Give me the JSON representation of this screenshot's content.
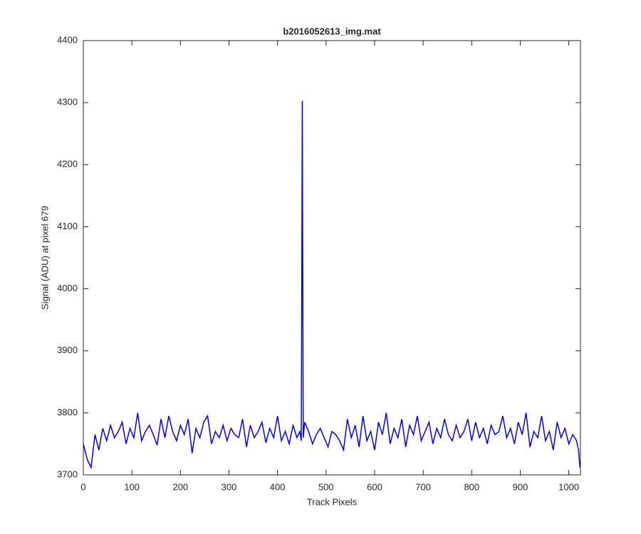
{
  "chart_data": {
    "type": "line",
    "title": "b2016052613_img.mat",
    "x_label": "Track Pixels",
    "y_label": "Signal (ADU) at pixel 679",
    "xlim": [
      0,
      1024
    ],
    "ylim": [
      3700,
      4400
    ],
    "xticks": [
      0,
      100,
      200,
      300,
      400,
      500,
      600,
      700,
      800,
      900,
      1000
    ],
    "yticks": [
      3700,
      3800,
      3900,
      4000,
      4100,
      4200,
      4300,
      4400
    ],
    "x": [
      0,
      8,
      16,
      24,
      32,
      40,
      48,
      56,
      64,
      72,
      80,
      88,
      96,
      104,
      112,
      120,
      128,
      136,
      144,
      152,
      160,
      168,
      176,
      184,
      192,
      200,
      208,
      216,
      224,
      232,
      240,
      248,
      256,
      264,
      272,
      280,
      288,
      296,
      304,
      312,
      320,
      328,
      336,
      344,
      352,
      360,
      368,
      376,
      384,
      392,
      400,
      408,
      416,
      424,
      432,
      440,
      446,
      449,
      451,
      453,
      456,
      464,
      472,
      480,
      488,
      496,
      504,
      512,
      520,
      528,
      536,
      544,
      552,
      560,
      568,
      576,
      584,
      592,
      600,
      608,
      616,
      624,
      632,
      640,
      648,
      656,
      664,
      672,
      680,
      688,
      696,
      704,
      712,
      720,
      728,
      736,
      744,
      752,
      760,
      768,
      776,
      784,
      792,
      800,
      808,
      816,
      824,
      832,
      840,
      848,
      856,
      864,
      872,
      880,
      888,
      896,
      904,
      912,
      920,
      928,
      936,
      944,
      952,
      960,
      968,
      976,
      984,
      992,
      1000,
      1008,
      1016,
      1020,
      1023
    ],
    "series": [
      {
        "color": "#0000ff",
        "values": [
          3750,
          3725,
          3712,
          3765,
          3740,
          3775,
          3755,
          3780,
          3760,
          3770,
          3785,
          3750,
          3775,
          3760,
          3800,
          3755,
          3770,
          3780,
          3765,
          3748,
          3790,
          3760,
          3795,
          3770,
          3755,
          3780,
          3765,
          3790,
          3735,
          3775,
          3760,
          3785,
          3795,
          3750,
          3770,
          3760,
          3780,
          3755,
          3775,
          3765,
          3760,
          3790,
          3745,
          3780,
          3760,
          3770,
          3785,
          3752,
          3775,
          3760,
          3795,
          3755,
          3770,
          3750,
          3780,
          3760,
          3770,
          3755,
          4303,
          3760,
          3785,
          3770,
          3750,
          3765,
          3775,
          3760,
          3745,
          3770,
          3765,
          3755,
          3740,
          3790,
          3760,
          3780,
          3745,
          3795,
          3755,
          3770,
          3740,
          3785,
          3765,
          3800,
          3750,
          3775,
          3760,
          3790,
          3745,
          3780,
          3765,
          3795,
          3755,
          3770,
          3785,
          3750,
          3775,
          3760,
          3790,
          3765,
          3755,
          3780,
          3760,
          3770,
          3790,
          3755,
          3785,
          3760,
          3775,
          3750,
          3780,
          3765,
          3770,
          3795,
          3760,
          3775,
          3750,
          3785,
          3765,
          3800,
          3745,
          3770,
          3760,
          3795,
          3755,
          3770,
          3740,
          3785,
          3760,
          3775,
          3750,
          3765,
          3755,
          3740,
          3712
        ]
      }
    ]
  }
}
